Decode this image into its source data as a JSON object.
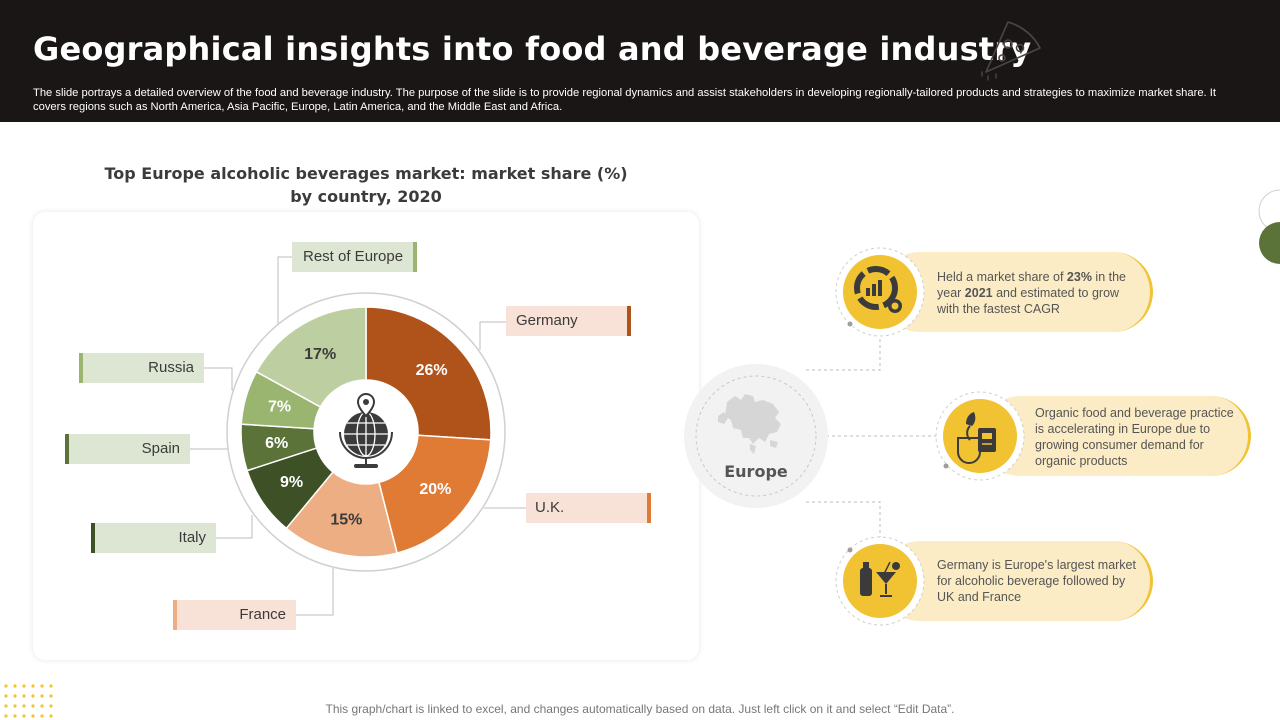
{
  "header": {
    "title": "Geographical insights into food and beverage industry",
    "subtitle": "The slide portrays a detailed overview of the food and beverage industry. The purpose of the slide is to provide regional dynamics and assist stakeholders in developing regionally-tailored products and strategies to maximize market share. It covers regions such as North America, Asia Pacific, Europe, Latin America, and the Middle East and Africa."
  },
  "chart_data": {
    "type": "pie",
    "variant": "donut",
    "title": "Top Europe alcoholic beverages market: market share (%) by country, 2020",
    "categories": [
      "Germany",
      "U.K.",
      "France",
      "Italy",
      "Spain",
      "Russia",
      "Rest of Europe"
    ],
    "values": [
      26,
      20,
      15,
      9,
      6,
      7,
      17
    ],
    "value_labels": [
      "26%",
      "20%",
      "15%",
      "9%",
      "6%",
      "7%",
      "17%"
    ],
    "colors": [
      "#b0531a",
      "#e07b35",
      "#eeae84",
      "#3e5026",
      "#5b7238",
      "#99b56f",
      "#bdcfa0"
    ],
    "label_colors": [
      "#ffffff",
      "#ffffff",
      "#3b3b3b",
      "#ffffff",
      "#ffffff",
      "#ffffff",
      "#3b3b3b"
    ],
    "center_icon": "globe-pin-icon"
  },
  "region": {
    "name": "Europe",
    "icon": "europe-map-icon"
  },
  "insights": [
    {
      "icon": "market-share-chart-icon",
      "parts": [
        {
          "text": "Held a market share of ",
          "bold": false
        },
        {
          "text": "23%",
          "bold": true
        },
        {
          "text": " in the year ",
          "bold": false
        },
        {
          "text": "2021",
          "bold": true
        },
        {
          "text": " and estimated to grow with the fastest CAGR",
          "bold": false
        }
      ]
    },
    {
      "icon": "organic-product-icon",
      "text": "Organic food and beverage practice is accelerating in Europe due to growing consumer demand for organic products"
    },
    {
      "icon": "beverages-icon",
      "text": "Germany is Europe's largest market for alcoholic beverage followed by UK and France"
    }
  ],
  "theme": {
    "header_bg": "#1a1616",
    "accent_yellow": "#f1c232",
    "insight_bg": "#fbecc6"
  },
  "footer": {
    "note": "This graph/chart is linked to excel,  and changes automatically based on data. Just left click on it and select “Edit Data”."
  }
}
